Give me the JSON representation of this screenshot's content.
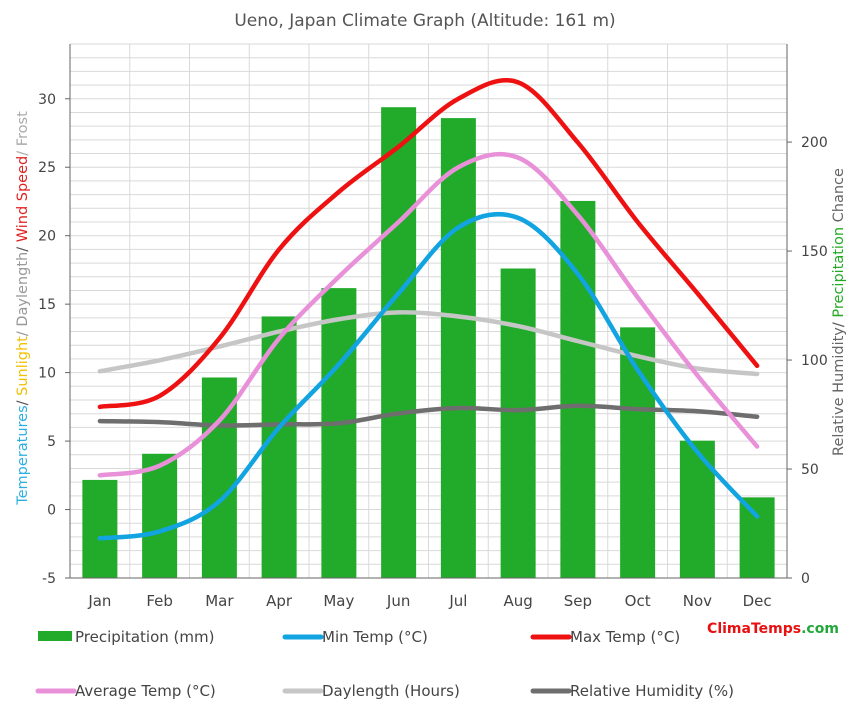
{
  "chart_data": {
    "type": "bar+line",
    "title": "Ueno, Japan Climate Graph (Altitude: 161 m)",
    "categories": [
      "Jan",
      "Feb",
      "Mar",
      "Apr",
      "May",
      "Jun",
      "Jul",
      "Aug",
      "Sep",
      "Oct",
      "Nov",
      "Dec"
    ],
    "left_axis": {
      "label_parts": [
        {
          "text": "Temperatures",
          "color": "#2ab0e0"
        },
        {
          "text": "/ ",
          "color": "#555555"
        },
        {
          "text": "Sunlight",
          "color": "#f0c000"
        },
        {
          "text": "/ Daylength",
          "color": "#999999"
        },
        {
          "text": "/ ",
          "color": "#555555"
        },
        {
          "text": "Wind Speed",
          "color": "#e02020"
        },
        {
          "text": "/ Frost",
          "color": "#aaaaaa"
        }
      ],
      "ylim": [
        -5,
        34
      ],
      "ticks": [
        -5,
        0,
        5,
        10,
        15,
        20,
        25,
        30
      ]
    },
    "right_axis": {
      "label_parts": [
        {
          "text": "Relative Humidity",
          "color": "#666666"
        },
        {
          "text": "/ ",
          "color": "#555555"
        },
        {
          "text": "Precipitation",
          "color": "#22aa22"
        },
        {
          "text": " Chance",
          "color": "#666666"
        }
      ],
      "ylim": [
        0,
        245
      ],
      "ticks": [
        0,
        50,
        100,
        150,
        200
      ]
    },
    "series": [
      {
        "name": "Precipitation (mm)",
        "kind": "bar",
        "axis": "right",
        "color": "#22aa2a",
        "values": [
          45,
          57,
          92,
          120,
          133,
          216,
          211,
          142,
          173,
          115,
          63,
          37
        ]
      },
      {
        "name": "Min Temp (°C)",
        "kind": "line",
        "axis": "left",
        "color": "#11a4e0",
        "values": [
          -2.1,
          -1.6,
          0.6,
          6.0,
          10.6,
          15.8,
          20.6,
          21.3,
          17.2,
          10.2,
          4.2,
          -0.5
        ]
      },
      {
        "name": "Max Temp (°C)",
        "kind": "line",
        "axis": "left",
        "color": "#ee1111",
        "values": [
          7.5,
          8.3,
          12.5,
          19.0,
          23.2,
          26.5,
          30.0,
          31.2,
          26.8,
          21.0,
          15.8,
          10.5
        ]
      },
      {
        "name": "Average Temp (°C)",
        "kind": "line",
        "axis": "left",
        "color": "#e890d8",
        "values": [
          2.5,
          3.2,
          6.5,
          12.5,
          17.0,
          21.0,
          25.0,
          25.7,
          21.5,
          15.5,
          9.8,
          4.6
        ]
      },
      {
        "name": "Daylength (Hours)",
        "kind": "line",
        "axis": "left",
        "color": "#c6c6c6",
        "values": [
          10.1,
          10.9,
          11.9,
          13.0,
          13.9,
          14.4,
          14.1,
          13.4,
          12.3,
          11.2,
          10.3,
          9.9
        ]
      },
      {
        "name": "Relative Humidity (%)",
        "kind": "line",
        "axis": "right",
        "color": "#6e6e6e",
        "values": [
          72,
          71.5,
          70,
          70.5,
          71,
          75.5,
          78,
          77,
          79,
          77.5,
          76.5,
          74
        ]
      }
    ],
    "grid": true
  },
  "brand": {
    "part1": "Clima",
    "part2": "Temps",
    "part3": ".com",
    "color1": "#e81010",
    "color2": "#e81010",
    "color3": "#22a83a"
  }
}
